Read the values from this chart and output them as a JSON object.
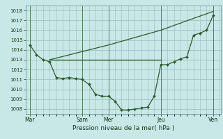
{
  "xlabel": "Pression niveau de la mer( hPa )",
  "bg_color": "#c8e8e8",
  "grid_color": "#99bbbb",
  "line_color": "#2a5a28",
  "ylim": [
    1007.5,
    1018.5
  ],
  "yticks": [
    1008,
    1009,
    1010,
    1011,
    1012,
    1013,
    1014,
    1015,
    1016,
    1017,
    1018
  ],
  "x_tick_positions": [
    0,
    48,
    72,
    120,
    168
  ],
  "x_tick_labels": [
    "Mar",
    "Sam",
    "Mer",
    "Jeu",
    "Ven"
  ],
  "xlim": [
    -4,
    175
  ],
  "line1_x": [
    0,
    6,
    12,
    18,
    24,
    30,
    36,
    42,
    48,
    54,
    60,
    66,
    72,
    78,
    84,
    90,
    96,
    102,
    108,
    114,
    120,
    126,
    132,
    138,
    144,
    150,
    156,
    162,
    168
  ],
  "line1_y": [
    1014.5,
    1013.5,
    1013.0,
    1012.8,
    1011.2,
    1011.1,
    1011.2,
    1011.1,
    1011.0,
    1010.5,
    1009.5,
    1009.3,
    1009.3,
    1008.8,
    1007.9,
    1007.9,
    1008.0,
    1008.1,
    1008.2,
    1009.3,
    1012.5,
    1012.5,
    1012.8,
    1013.1,
    1013.3,
    1015.5,
    1015.7,
    1016.0,
    1017.5
  ],
  "line2_x": [
    18,
    120
  ],
  "line2_y": [
    1013.0,
    1013.0
  ],
  "line3_x": [
    18,
    72,
    120,
    150,
    168
  ],
  "line3_y": [
    1013.0,
    1014.5,
    1016.0,
    1017.2,
    1017.9
  ],
  "vlines_x": [
    0,
    48,
    72,
    120,
    168
  ],
  "minor_x_step": 6
}
